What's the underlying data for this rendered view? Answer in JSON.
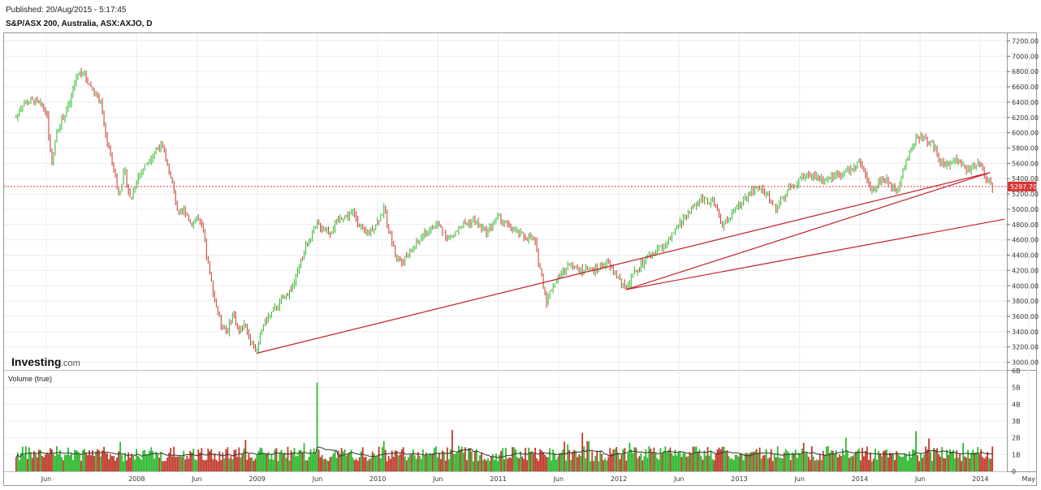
{
  "header": {
    "published": "Published: 20/Aug/2015 - 5:17:45",
    "symbol": "S&P/ASX 200, Australia, ASX:AXJO, D"
  },
  "brand": {
    "main": "Investing",
    "sub": ".com"
  },
  "volume_panel": {
    "label": "Volume (true)"
  },
  "colors": {
    "up": "#2db82d",
    "down": "#c0392b",
    "trendline": "#c0202a",
    "price_line": "#d93636",
    "grid": "#ececec"
  },
  "chart_data": {
    "type": "candlestick",
    "price_axis": {
      "ylim": [
        2900,
        7300
      ],
      "ticks": [
        "7200.00",
        "7000.00",
        "6800.00",
        "6600.00",
        "6400.00",
        "6200.00",
        "6000.00",
        "5800.00",
        "5600.00",
        "5400.00",
        "5200.00",
        "5000.00",
        "4800.00",
        "4600.00",
        "4400.00",
        "4200.00",
        "4000.00",
        "3800.00",
        "3600.00",
        "3400.00",
        "3200.00",
        "3000.00"
      ]
    },
    "volume_axis": {
      "ylim": [
        0,
        6
      ],
      "ticks": [
        "6B",
        "5B",
        "4B",
        "3B",
        "2B",
        "1B",
        "0"
      ],
      "values": [
        6,
        5,
        4,
        3,
        2,
        1,
        0
      ]
    },
    "x_labels": [
      "Jun",
      "2008",
      "Jun",
      "2009",
      "Jun",
      "2010",
      "Jun",
      "2011",
      "Jun",
      "2012",
      "Jun",
      "2013",
      "Jun",
      "2014",
      "Jun",
      "2014",
      "May"
    ],
    "x_label_t": [
      0.25,
      1,
      1.5,
      2,
      2.5,
      3,
      3.5,
      4,
      4.5,
      5,
      5.5,
      6,
      6.5,
      7,
      7.5,
      8,
      8.4
    ],
    "current_price": {
      "value": 5297.7,
      "label": "5297.70"
    },
    "price_path": [
      [
        0,
        6200
      ],
      [
        0.05,
        6380
      ],
      [
        0.15,
        6420
      ],
      [
        0.25,
        6300
      ],
      [
        0.3,
        5500
      ],
      [
        0.33,
        6000
      ],
      [
        0.45,
        6400
      ],
      [
        0.5,
        6750
      ],
      [
        0.55,
        6800
      ],
      [
        0.62,
        6600
      ],
      [
        0.7,
        6400
      ],
      [
        0.75,
        5900
      ],
      [
        0.8,
        5600
      ],
      [
        0.85,
        5200
      ],
      [
        0.9,
        5500
      ],
      [
        0.95,
        5100
      ],
      [
        1.0,
        5400
      ],
      [
        1.1,
        5650
      ],
      [
        1.2,
        5850
      ],
      [
        1.25,
        5600
      ],
      [
        1.3,
        5300
      ],
      [
        1.35,
        4900
      ],
      [
        1.4,
        5000
      ],
      [
        1.45,
        4800
      ],
      [
        1.5,
        4900
      ],
      [
        1.55,
        4700
      ],
      [
        1.6,
        4200
      ],
      [
        1.65,
        3800
      ],
      [
        1.7,
        3500
      ],
      [
        1.75,
        3400
      ],
      [
        1.8,
        3650
      ],
      [
        1.85,
        3400
      ],
      [
        1.9,
        3500
      ],
      [
        1.95,
        3250
      ],
      [
        2.0,
        3150
      ],
      [
        2.05,
        3500
      ],
      [
        2.1,
        3600
      ],
      [
        2.2,
        3800
      ],
      [
        2.3,
        4000
      ],
      [
        2.4,
        4500
      ],
      [
        2.5,
        4800
      ],
      [
        2.6,
        4700
      ],
      [
        2.7,
        4900
      ],
      [
        2.8,
        4950
      ],
      [
        2.9,
        4650
      ],
      [
        3.0,
        4850
      ],
      [
        3.05,
        5000
      ],
      [
        3.1,
        4700
      ],
      [
        3.15,
        4400
      ],
      [
        3.2,
        4300
      ],
      [
        3.3,
        4500
      ],
      [
        3.4,
        4700
      ],
      [
        3.5,
        4800
      ],
      [
        3.6,
        4600
      ],
      [
        3.7,
        4800
      ],
      [
        3.8,
        4850
      ],
      [
        3.9,
        4700
      ],
      [
        4.0,
        4900
      ],
      [
        4.1,
        4750
      ],
      [
        4.2,
        4650
      ],
      [
        4.3,
        4600
      ],
      [
        4.35,
        4200
      ],
      [
        4.4,
        3800
      ],
      [
        4.45,
        4000
      ],
      [
        4.5,
        4100
      ],
      [
        4.6,
        4300
      ],
      [
        4.7,
        4200
      ],
      [
        4.8,
        4200
      ],
      [
        4.9,
        4300
      ],
      [
        5.0,
        4100
      ],
      [
        5.05,
        3950
      ],
      [
        5.1,
        4100
      ],
      [
        5.2,
        4300
      ],
      [
        5.3,
        4450
      ],
      [
        5.4,
        4550
      ],
      [
        5.5,
        4800
      ],
      [
        5.6,
        5000
      ],
      [
        5.7,
        5150
      ],
      [
        5.8,
        5050
      ],
      [
        5.85,
        4800
      ],
      [
        5.9,
        4850
      ],
      [
        6.0,
        5050
      ],
      [
        6.1,
        5250
      ],
      [
        6.2,
        5250
      ],
      [
        6.3,
        5000
      ],
      [
        6.4,
        5250
      ],
      [
        6.5,
        5400
      ],
      [
        6.6,
        5450
      ],
      [
        6.7,
        5400
      ],
      [
        6.8,
        5450
      ],
      [
        6.9,
        5500
      ],
      [
        7.0,
        5600
      ],
      [
        7.05,
        5400
      ],
      [
        7.1,
        5250
      ],
      [
        7.15,
        5350
      ],
      [
        7.2,
        5400
      ],
      [
        7.3,
        5250
      ],
      [
        7.35,
        5450
      ],
      [
        7.4,
        5700
      ],
      [
        7.45,
        5900
      ],
      [
        7.5,
        5950
      ],
      [
        7.6,
        5850
      ],
      [
        7.65,
        5700
      ],
      [
        7.7,
        5550
      ],
      [
        7.8,
        5650
      ],
      [
        7.9,
        5500
      ],
      [
        8.0,
        5600
      ],
      [
        8.05,
        5400
      ],
      [
        8.1,
        5297.7
      ]
    ],
    "trendlines": [
      {
        "from": [
          2.0,
          3120
        ],
        "to": [
          8.08,
          5480
        ]
      },
      {
        "from": [
          5.06,
          3950
        ],
        "to": [
          8.08,
          5480
        ]
      },
      {
        "from": [
          5.06,
          3950
        ],
        "to": [
          8.2,
          4870
        ]
      }
    ]
  }
}
